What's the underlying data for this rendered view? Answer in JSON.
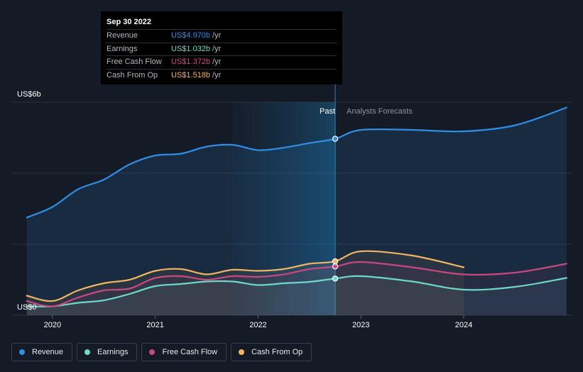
{
  "chart_data": {
    "type": "area",
    "y_axis": {
      "top_label": "US$6b",
      "bottom_label": "US$0",
      "ylim": [
        0,
        6
      ]
    },
    "x_ticks": [
      {
        "label": "2020",
        "t": 2020.0
      },
      {
        "label": "2021",
        "t": 2021.0
      },
      {
        "label": "2022",
        "t": 2022.0
      },
      {
        "label": "2023",
        "t": 2023.0
      },
      {
        "label": "2024",
        "t": 2024.0
      }
    ],
    "x_range": [
      2019.6,
      2025.05
    ],
    "past_label": "Past",
    "forecast_label": "Analysts Forecasts",
    "past_region_start": 2021.75,
    "divider_t": 2022.75,
    "series": [
      {
        "name": "Revenue",
        "color": "#2f8de4",
        "points": [
          [
            2019.75,
            2.75
          ],
          [
            2020.0,
            3.05
          ],
          [
            2020.25,
            3.55
          ],
          [
            2020.5,
            3.82
          ],
          [
            2020.75,
            4.25
          ],
          [
            2021.0,
            4.5
          ],
          [
            2021.25,
            4.55
          ],
          [
            2021.5,
            4.75
          ],
          [
            2021.75,
            4.8
          ],
          [
            2022.0,
            4.65
          ],
          [
            2022.25,
            4.72
          ],
          [
            2022.5,
            4.85
          ],
          [
            2022.75,
            4.97
          ],
          [
            2023.0,
            5.22
          ],
          [
            2023.5,
            5.22
          ],
          [
            2024.0,
            5.18
          ],
          [
            2024.5,
            5.35
          ],
          [
            2025.0,
            5.85
          ]
        ]
      },
      {
        "name": "Earnings",
        "color": "#6dd8c8",
        "points": [
          [
            2019.75,
            0.25
          ],
          [
            2020.0,
            0.25
          ],
          [
            2020.25,
            0.35
          ],
          [
            2020.5,
            0.42
          ],
          [
            2020.75,
            0.6
          ],
          [
            2021.0,
            0.82
          ],
          [
            2021.25,
            0.88
          ],
          [
            2021.5,
            0.95
          ],
          [
            2021.75,
            0.95
          ],
          [
            2022.0,
            0.85
          ],
          [
            2022.25,
            0.9
          ],
          [
            2022.5,
            0.94
          ],
          [
            2022.75,
            1.032
          ],
          [
            2023.0,
            1.1
          ],
          [
            2023.5,
            0.95
          ],
          [
            2024.0,
            0.72
          ],
          [
            2024.5,
            0.8
          ],
          [
            2025.0,
            1.05
          ]
        ]
      },
      {
        "name": "Free Cash Flow",
        "color": "#c8487f",
        "points": [
          [
            2019.75,
            0.4
          ],
          [
            2020.0,
            0.25
          ],
          [
            2020.25,
            0.5
          ],
          [
            2020.5,
            0.7
          ],
          [
            2020.75,
            0.75
          ],
          [
            2021.0,
            1.05
          ],
          [
            2021.25,
            1.1
          ],
          [
            2021.5,
            1.0
          ],
          [
            2021.75,
            1.1
          ],
          [
            2022.0,
            1.08
          ],
          [
            2022.25,
            1.15
          ],
          [
            2022.5,
            1.3
          ],
          [
            2022.75,
            1.372
          ],
          [
            2023.0,
            1.5
          ],
          [
            2023.5,
            1.35
          ],
          [
            2024.0,
            1.15
          ],
          [
            2024.5,
            1.2
          ],
          [
            2025.0,
            1.45
          ]
        ]
      },
      {
        "name": "Cash From Op",
        "color": "#f0b560",
        "points": [
          [
            2019.75,
            0.55
          ],
          [
            2020.0,
            0.4
          ],
          [
            2020.25,
            0.7
          ],
          [
            2020.5,
            0.9
          ],
          [
            2020.75,
            1.0
          ],
          [
            2021.0,
            1.25
          ],
          [
            2021.25,
            1.3
          ],
          [
            2021.5,
            1.15
          ],
          [
            2021.75,
            1.28
          ],
          [
            2022.0,
            1.25
          ],
          [
            2022.25,
            1.3
          ],
          [
            2022.5,
            1.45
          ],
          [
            2022.75,
            1.518
          ],
          [
            2023.0,
            1.8
          ],
          [
            2023.5,
            1.68
          ],
          [
            2024.0,
            1.35
          ]
        ]
      }
    ]
  },
  "tooltip": {
    "date": "Sep 30 2022",
    "rows": [
      {
        "label": "Revenue",
        "value": "US$4.970b",
        "unit": "/yr",
        "color": "#2f8de4"
      },
      {
        "label": "Earnings",
        "value": "US$1.032b",
        "unit": "/yr",
        "color": "#6dd8c8"
      },
      {
        "label": "Free Cash Flow",
        "value": "US$1.372b",
        "unit": "/yr",
        "color": "#c8487f"
      },
      {
        "label": "Cash From Op",
        "value": "US$1.518b",
        "unit": "/yr",
        "color": "#f0b560"
      }
    ]
  },
  "legend": [
    {
      "label": "Revenue",
      "color": "#2f8de4"
    },
    {
      "label": "Earnings",
      "color": "#6dd8c8"
    },
    {
      "label": "Free Cash Flow",
      "color": "#c8487f"
    },
    {
      "label": "Cash From Op",
      "color": "#f0b560"
    }
  ]
}
